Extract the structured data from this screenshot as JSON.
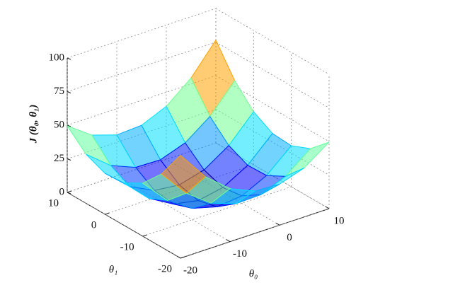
{
  "chart_data": {
    "type": "surface",
    "x": [
      -20,
      -15,
      -10,
      -5,
      0,
      5,
      10
    ],
    "y": [
      -20,
      -15,
      -10,
      -5,
      0,
      5,
      10
    ],
    "z": [
      [
        76.5,
        54.5,
        39.5,
        31.5,
        30.5,
        36.5,
        49.5
      ],
      [
        54.5,
        34,
        20.5,
        14,
        14.5,
        22,
        36.5
      ],
      [
        39.5,
        20.5,
        8.5,
        3.5,
        5.5,
        14.5,
        30.5
      ],
      [
        31.5,
        14,
        3.5,
        0,
        3.5,
        14,
        31.5
      ],
      [
        30.5,
        14.5,
        5.5,
        3.5,
        8.5,
        20.5,
        39.5
      ],
      [
        36.5,
        22,
        14.5,
        14,
        20.5,
        34,
        54.5
      ],
      [
        49.5,
        36.5,
        30.5,
        31.5,
        39.5,
        54.5,
        76.5
      ]
    ],
    "xlim": [
      -20,
      10
    ],
    "ylim": [
      -20,
      10
    ],
    "zlim": [
      0,
      100
    ],
    "xticks": [
      -20,
      -10,
      0,
      10
    ],
    "yticks": [
      -20,
      -10,
      0,
      10
    ],
    "zticks": [
      0,
      25,
      50,
      75,
      100
    ],
    "xlabel": "θ₀",
    "ylabel": "θ₁",
    "zlabel": "J (θ₀, θ₁)",
    "colormap": "jet",
    "grid": true
  }
}
